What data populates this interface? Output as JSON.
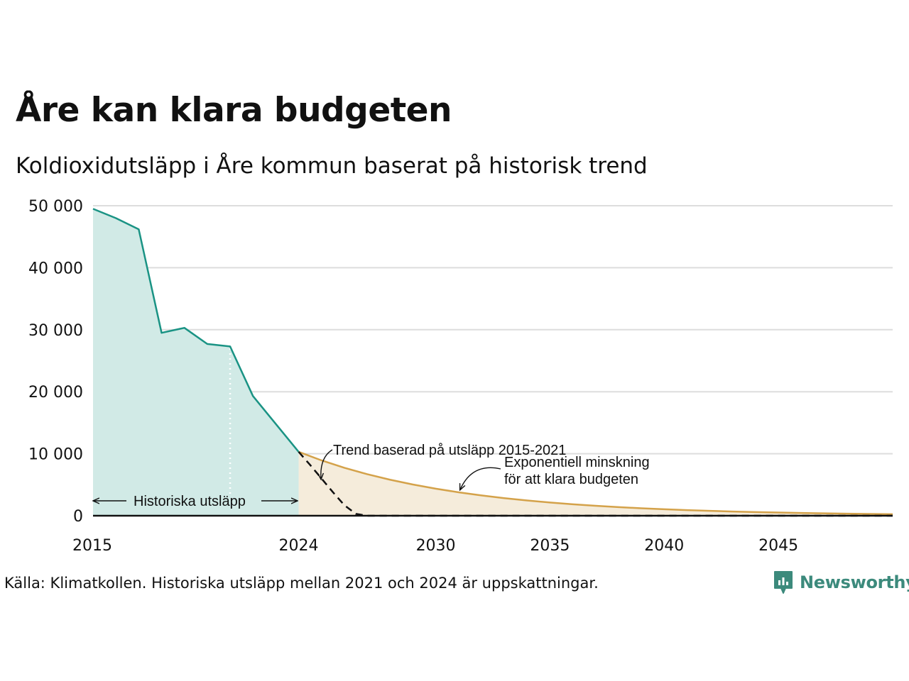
{
  "title": "Åre kan klara budgeten",
  "subtitle": "Koldioxidutsläpp i Åre kommun baserat på historisk trend",
  "source": "Källa: Klimatkollen. Historiska utsläpp mellan 2021 och 2024 är uppskattningar.",
  "brand": "Newsworthy",
  "colors": {
    "historical_line": "#1a9384",
    "historical_fill": "#d1eae6",
    "budget_line": "#d4a24a",
    "budget_fill": "#f5ecdb",
    "trend_line": "#111111",
    "grid": "#dddddd",
    "logo": "#3c8a7c"
  },
  "chart_data": {
    "type": "area",
    "xlim": [
      2015,
      2050
    ],
    "ylim": [
      0,
      50000
    ],
    "x_ticks": [
      2015,
      2024,
      2030,
      2035,
      2040,
      2045
    ],
    "x_tick_labels": [
      "2015",
      "2024",
      "2030",
      "2035",
      "2040",
      "2045"
    ],
    "y_ticks": [
      0,
      10000,
      20000,
      30000,
      40000,
      50000
    ],
    "y_tick_labels": [
      "0",
      "10 000",
      "20 000",
      "30 000",
      "40 000",
      "50 000"
    ],
    "grid": "horizontal",
    "series": [
      {
        "key": "historical",
        "x": [
          2015,
          2016,
          2017,
          2018,
          2019,
          2020,
          2021,
          2022,
          2024
        ],
        "y": [
          49500,
          48000,
          46200,
          29500,
          30300,
          27700,
          27300,
          19300,
          10300
        ]
      },
      {
        "key": "budget",
        "x": [
          2024,
          2025,
          2026,
          2027,
          2028,
          2029,
          2030,
          2031,
          2032,
          2033,
          2034,
          2035,
          2036,
          2037,
          2038,
          2039,
          2040,
          2041,
          2042,
          2043,
          2044,
          2045,
          2046,
          2047,
          2048,
          2049,
          2050
        ],
        "y": [
          10300,
          8925,
          7734,
          6701,
          5807,
          5032,
          4360,
          3778,
          3274,
          2837,
          2458,
          2130,
          1846,
          1599,
          1386,
          1201,
          1041,
          902,
          781,
          677,
          587,
          508,
          440,
          382,
          331,
          287,
          248
        ]
      },
      {
        "key": "trend",
        "x": [
          2024,
          2024.5,
          2025,
          2025.5,
          2026,
          2026.5,
          2027,
          2028,
          2030,
          2035,
          2040,
          2045,
          2050
        ],
        "y": [
          10300,
          8200,
          6000,
          3800,
          1700,
          300,
          0,
          0,
          0,
          0,
          0,
          0,
          0
        ]
      }
    ],
    "vertical_marker_x": 2021,
    "annotations": {
      "historical": "Historiska utsläpp",
      "trend": "Trend baserad på utsläpp 2015-2021",
      "budget_line1": "Exponentiell minskning",
      "budget_line2": "för att klara budgeten"
    }
  }
}
